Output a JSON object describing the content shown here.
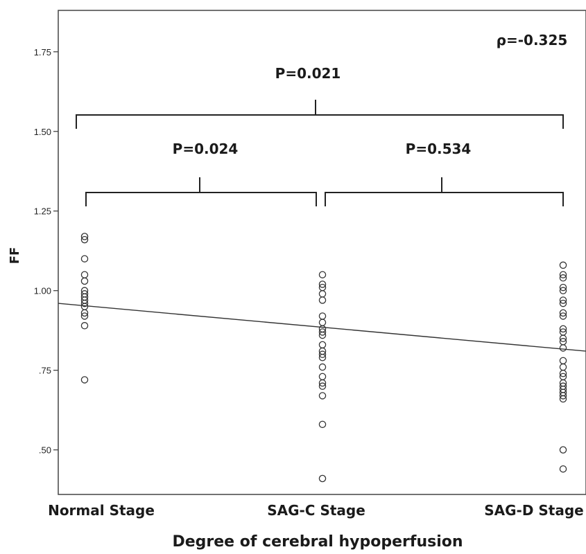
{
  "chart_data": {
    "type": "scatter",
    "xlabel": "Degree of cerebral hypoperfusion",
    "ylabel": "FF",
    "categories": [
      "Normal Stage",
      "SAG-C Stage",
      "SAG-D Stage"
    ],
    "y_ticks": [
      0.5,
      0.75,
      1.0,
      1.25,
      1.5,
      1.75
    ],
    "y_tick_labels": [
      ".50",
      ".75",
      "1.00",
      "1.25",
      "1.50",
      "1.75"
    ],
    "ylim": [
      0.36,
      1.88
    ],
    "grid": false,
    "points": [
      {
        "category": "Normal Stage",
        "values": [
          1.17,
          1.16,
          1.1,
          1.05,
          1.03,
          1.0,
          0.99,
          0.98,
          0.97,
          0.96,
          0.95,
          0.93,
          0.92,
          0.89,
          0.72
        ]
      },
      {
        "category": "SAG-C Stage",
        "values": [
          1.05,
          1.02,
          1.01,
          0.99,
          0.97,
          0.92,
          0.9,
          0.88,
          0.87,
          0.86,
          0.83,
          0.81,
          0.8,
          0.79,
          0.76,
          0.73,
          0.71,
          0.7,
          0.67,
          0.58,
          0.41
        ]
      },
      {
        "category": "SAG-D Stage",
        "values": [
          1.08,
          1.05,
          1.04,
          1.01,
          1.0,
          0.97,
          0.96,
          0.93,
          0.92,
          0.88,
          0.87,
          0.85,
          0.84,
          0.82,
          0.78,
          0.76,
          0.74,
          0.73,
          0.71,
          0.7,
          0.69,
          0.68,
          0.67,
          0.66,
          0.5,
          0.44
        ]
      }
    ],
    "fit_line": {
      "y_start": 0.96,
      "y_end": 0.81
    },
    "annotations": {
      "rho": "ρ=-0.325",
      "p_normal_sagd": "P=0.021",
      "p_normal_sagc": "P=0.024",
      "p_sagc_sagd": "P=0.534"
    }
  }
}
